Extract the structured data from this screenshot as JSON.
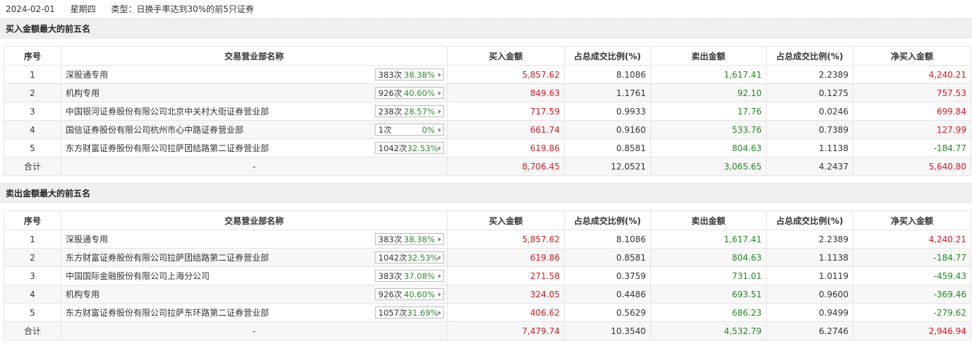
{
  "header": {
    "date": "2024-02-01",
    "weekday": "星期四",
    "type": "类型：日换手率达到30%的前5只证券"
  },
  "columns": [
    "序号",
    "交易营业部名称",
    "买入金额",
    "占总成交比例(%)",
    "卖出金额",
    "占总成交比例(%)",
    "净买入金额"
  ],
  "buy_section": {
    "title": "买入金额最大的前五名",
    "rows": [
      {
        "no": "1",
        "name": "深股通专用",
        "count": "383次",
        "pct": "38.38%",
        "buy": "5,857.62",
        "buy_ratio": "8.1086",
        "sell": "1,617.41",
        "sell_ratio": "2.2389",
        "net": "4,240.21"
      },
      {
        "no": "2",
        "name": "机构专用",
        "count": "926次",
        "pct": "40.60%",
        "buy": "849.63",
        "buy_ratio": "1.1761",
        "sell": "92.10",
        "sell_ratio": "0.1275",
        "net": "757.53"
      },
      {
        "no": "3",
        "name": "中国银河证券股份有限公司北京中关村大街证券营业部",
        "count": "238次",
        "pct": "28.57%",
        "buy": "717.59",
        "buy_ratio": "0.9933",
        "sell": "17.76",
        "sell_ratio": "0.0246",
        "net": "699.84"
      },
      {
        "no": "4",
        "name": "国信证券股份有限公司杭州市心中路证券营业部",
        "count": "1次",
        "pct": "0%",
        "buy": "661.74",
        "buy_ratio": "0.9160",
        "sell": "533.76",
        "sell_ratio": "0.7389",
        "net": "127.99"
      },
      {
        "no": "5",
        "name": "东方财富证券股份有限公司拉萨团结路第二证券营业部",
        "count": "1042次",
        "pct": "32.53%",
        "buy": "619.86",
        "buy_ratio": "0.8581",
        "sell": "804.63",
        "sell_ratio": "1.1138",
        "net": "-184.77"
      }
    ],
    "total": {
      "label": "合计",
      "name": "-",
      "buy": "8,706.45",
      "buy_ratio": "12.0521",
      "sell": "3,065.65",
      "sell_ratio": "4.2437",
      "net": "5,640.80"
    }
  },
  "sell_section": {
    "title": "卖出金额最大的前五名",
    "rows": [
      {
        "no": "1",
        "name": "深股通专用",
        "count": "383次",
        "pct": "38.38%",
        "buy": "5,857.62",
        "buy_ratio": "8.1086",
        "sell": "1,617.41",
        "sell_ratio": "2.2389",
        "net": "4,240.21"
      },
      {
        "no": "2",
        "name": "东方财富证券股份有限公司拉萨团结路第二证券营业部",
        "count": "1042次",
        "pct": "32.53%",
        "buy": "619.86",
        "buy_ratio": "0.8581",
        "sell": "804.63",
        "sell_ratio": "1.1138",
        "net": "-184.77"
      },
      {
        "no": "3",
        "name": "中国国际金融股份有限公司上海分公司",
        "count": "383次",
        "pct": "37.08%",
        "buy": "271.58",
        "buy_ratio": "0.3759",
        "sell": "731.01",
        "sell_ratio": "1.0119",
        "net": "-459.43"
      },
      {
        "no": "4",
        "name": "机构专用",
        "count": "926次",
        "pct": "40.60%",
        "buy": "324.05",
        "buy_ratio": "0.4486",
        "sell": "693.51",
        "sell_ratio": "0.9600",
        "net": "-369.46"
      },
      {
        "no": "5",
        "name": "东方财富证券股份有限公司拉萨东环路第二证券营业部",
        "count": "1057次",
        "pct": "31.69%",
        "buy": "406.62",
        "buy_ratio": "0.5629",
        "sell": "686.23",
        "sell_ratio": "0.9499",
        "net": "-279.62"
      }
    ],
    "total": {
      "label": "合计",
      "name": "-",
      "buy": "7,479.74",
      "buy_ratio": "10.3540",
      "sell": "4,532.79",
      "sell_ratio": "6.2746",
      "net": "2,946.94"
    }
  },
  "colors": {
    "buy": "#e0161c",
    "sell": "#1c8c1c",
    "pct": "#2e8b2e"
  }
}
